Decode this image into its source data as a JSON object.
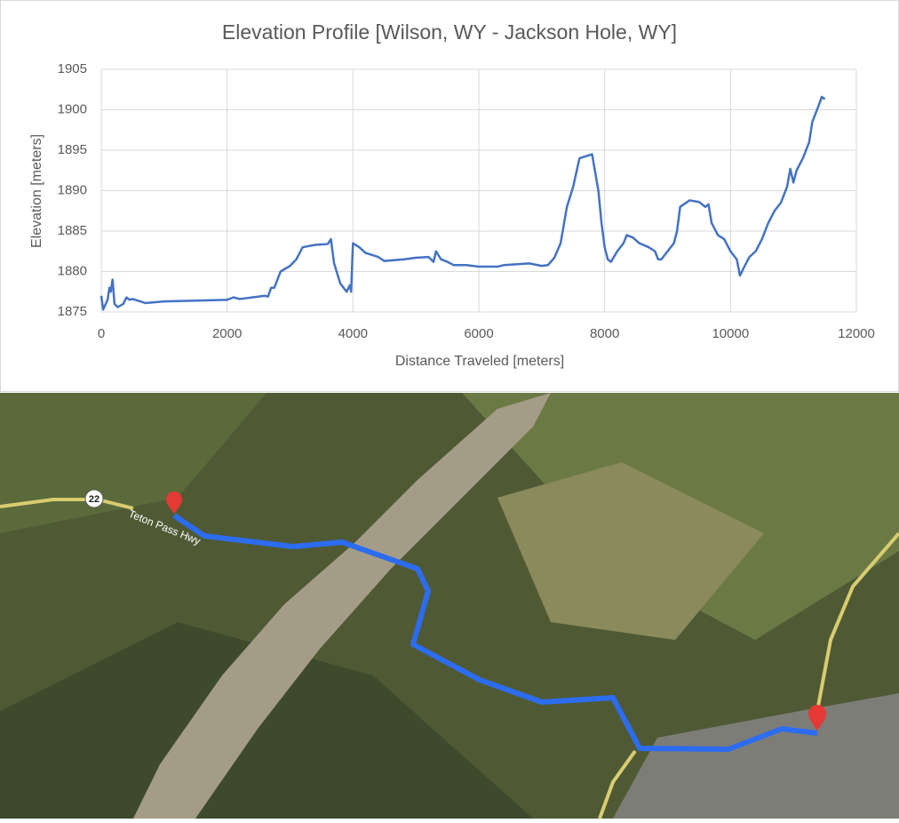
{
  "chart_data": {
    "type": "line",
    "title": "Elevation Profile [Wilson, WY - Jackson Hole, WY]",
    "xlabel": "Distance Traveled [meters]",
    "ylabel": "Elevation [meters]",
    "xlim": [
      0,
      12000
    ],
    "xticks": [
      0,
      2000,
      4000,
      6000,
      8000,
      10000,
      12000
    ],
    "ylim": [
      1875,
      1905
    ],
    "yticks": [
      1875,
      1880,
      1885,
      1890,
      1895,
      1900,
      1905
    ],
    "grid": true,
    "series": [
      {
        "color": "#4472c4",
        "x": [
          0,
          30,
          100,
          130,
          150,
          180,
          210,
          260,
          350,
          400,
          450,
          500,
          700,
          1000,
          1500,
          2000,
          2100,
          2200,
          2400,
          2600,
          2650,
          2700,
          2750,
          2850,
          3000,
          3100,
          3200,
          3400,
          3600,
          3650,
          3700,
          3800,
          3900,
          3950,
          3970,
          4000,
          4100,
          4200,
          4400,
          4500,
          4800,
          5000,
          5200,
          5280,
          5320,
          5400,
          5500,
          5600,
          5800,
          6000,
          6300,
          6400,
          6800,
          7000,
          7100,
          7200,
          7300,
          7400,
          7500,
          7600,
          7800,
          7900,
          7950,
          8000,
          8050,
          8100,
          8200,
          8300,
          8350,
          8450,
          8550,
          8700,
          8800,
          8850,
          8900,
          9000,
          9100,
          9150,
          9200,
          9350,
          9500,
          9600,
          9650,
          9700,
          9800,
          9900,
          10000,
          10100,
          10150,
          10200,
          10300,
          10400,
          10500,
          10600,
          10700,
          10800,
          10900,
          10950,
          11000,
          11050,
          11150,
          11250,
          11300,
          11400,
          11450,
          11500
        ],
        "values": [
          1877,
          1875.3,
          1876.5,
          1878,
          1877.5,
          1879,
          1876,
          1875.6,
          1876,
          1876.8,
          1876.5,
          1876.6,
          1876.1,
          1876.3,
          1876.4,
          1876.5,
          1876.8,
          1876.6,
          1876.8,
          1877,
          1876.9,
          1878,
          1878,
          1880,
          1880.7,
          1881.5,
          1883,
          1883.3,
          1883.4,
          1884,
          1881,
          1878.5,
          1877.5,
          1878.3,
          1877.5,
          1883.5,
          1883,
          1882.3,
          1881.8,
          1881.3,
          1881.5,
          1881.7,
          1881.8,
          1881.2,
          1882.5,
          1881.5,
          1881.2,
          1880.8,
          1880.8,
          1880.6,
          1880.6,
          1880.8,
          1881,
          1880.7,
          1880.8,
          1881.7,
          1883.5,
          1888,
          1890.5,
          1894,
          1894.5,
          1890,
          1886,
          1883,
          1881.5,
          1881.2,
          1882.5,
          1883.5,
          1884.5,
          1884.2,
          1883.5,
          1883,
          1882.5,
          1881.5,
          1881.5,
          1882.5,
          1883.5,
          1885,
          1888,
          1888.8,
          1888.6,
          1888,
          1888.3,
          1886,
          1884.5,
          1884,
          1882.5,
          1881.5,
          1879.5,
          1880.3,
          1881.8,
          1882.5,
          1884,
          1886,
          1887.5,
          1888.5,
          1890.5,
          1892.7,
          1891,
          1892.5,
          1894,
          1896,
          1898.5,
          1900.5,
          1901.6,
          1901.3
        ]
      }
    ]
  },
  "map": {
    "labels": [
      "22",
      "Teton Pass Hwy"
    ]
  }
}
